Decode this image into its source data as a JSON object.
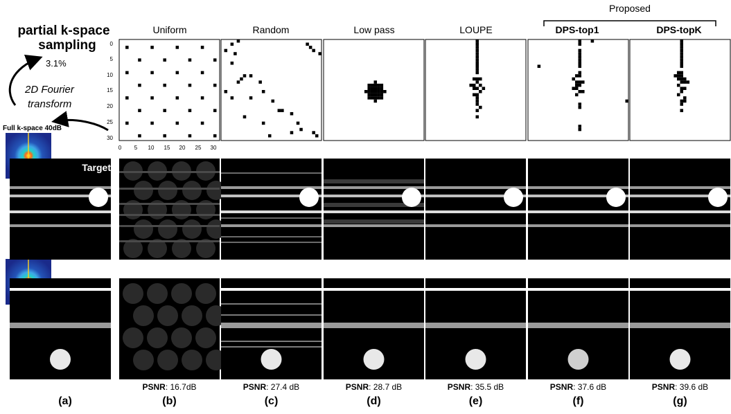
{
  "left": {
    "title_line1": "partial k-space",
    "title_line2": "sampling",
    "percent": "3.1%",
    "ft_line1": "2D Fourier",
    "ft_line2": "transform",
    "full_kspace": "Full k-space 40dB",
    "target_label": "Target"
  },
  "proposed_label": "Proposed",
  "columns": [
    {
      "id": "b",
      "title": "Uniform",
      "title_bold": false,
      "psnr_label": "PSNR",
      "psnr_value": ": 16.7dB",
      "panel": "(b)"
    },
    {
      "id": "c",
      "title": "Random",
      "title_bold": false,
      "psnr_label": "PSNR",
      "psnr_value": ": 27.4 dB",
      "panel": "(c)"
    },
    {
      "id": "d",
      "title": "Low pass",
      "title_bold": false,
      "psnr_label": "PSNR",
      "psnr_value": ": 28.7 dB",
      "panel": "(d)"
    },
    {
      "id": "e",
      "title": "LOUPE",
      "title_bold": false,
      "psnr_label": "PSNR",
      "psnr_value": ": 35.5 dB",
      "panel": "(e)"
    },
    {
      "id": "f",
      "title": "DPS-top1",
      "title_bold": true,
      "psnr_label": "PSNR",
      "psnr_value": ":  37.6 dB",
      "panel": "(f)"
    },
    {
      "id": "g",
      "title": "DPS-topK",
      "title_bold": true,
      "psnr_label": "PSNR",
      "psnr_value": ":  39.6 dB",
      "panel": "(g)"
    }
  ],
  "panel_a": "(a)",
  "axis": {
    "y_ticks": [
      "0",
      "5",
      "10",
      "15",
      "20",
      "25",
      "30"
    ],
    "x_ticks": [
      "0",
      "5",
      "10",
      "15",
      "20",
      "25",
      "30"
    ]
  },
  "colors": {
    "mask_bg": "#ffffff",
    "mask_dot": "#000000",
    "recon_bg": "#000000",
    "recon_line": "#bfbfbf",
    "recon_bright": "#ffffff"
  }
}
